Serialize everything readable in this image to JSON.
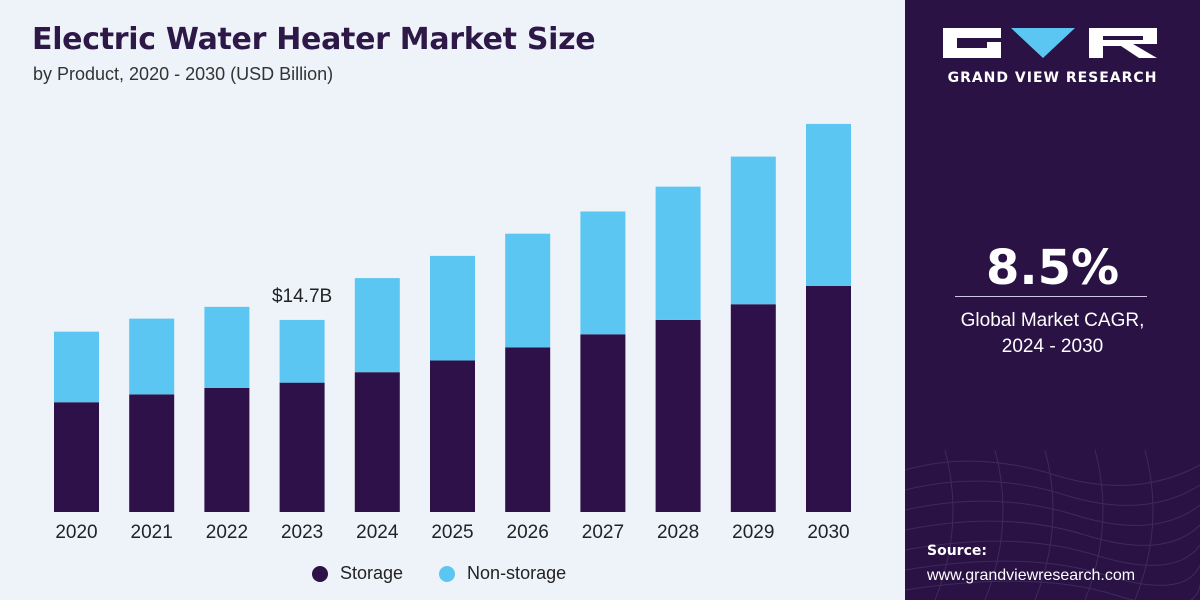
{
  "title": "Electric Water Heater Market Size",
  "subtitle": "by Product, 2020 - 2030 (USD Billion)",
  "colors": {
    "storage": "#2e1148",
    "non_storage": "#5bc6f2",
    "panel": "#2a1245"
  },
  "chart_data": {
    "type": "bar",
    "stacked": true,
    "categories": [
      "2020",
      "2021",
      "2022",
      "2023",
      "2024",
      "2025",
      "2026",
      "2027",
      "2028",
      "2029",
      "2030"
    ],
    "series": [
      {
        "name": "Storage",
        "values": [
          8.4,
          9.0,
          9.5,
          9.9,
          10.7,
          11.6,
          12.6,
          13.6,
          14.7,
          15.9,
          17.3
        ]
      },
      {
        "name": "Non-storage",
        "values": [
          5.4,
          5.8,
          6.2,
          4.8,
          7.2,
          8.0,
          8.7,
          9.4,
          10.2,
          11.3,
          12.4
        ]
      }
    ],
    "annotations": [
      {
        "category": "2023",
        "text": "$14.7B"
      }
    ],
    "ylim": [
      0,
      30
    ],
    "grid": false,
    "legend_position": "bottom"
  },
  "legend": {
    "storage_label": "Storage",
    "non_storage_label": "Non-storage"
  },
  "side": {
    "brand": "GRAND VIEW RESEARCH",
    "cagr_value": "8.5%",
    "cagr_label_line1": "Global Market CAGR,",
    "cagr_label_line2": "2024 - 2030",
    "source_label": "Source:",
    "source_url": "www.grandviewresearch.com"
  }
}
